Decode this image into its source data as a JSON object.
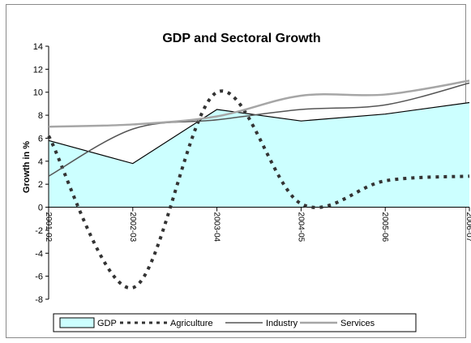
{
  "chart_data": {
    "type": "line",
    "title": "GDP and Sectoral Growth",
    "ylabel": "Growth in %",
    "xlabel": "",
    "ylim": [
      -8,
      14
    ],
    "yticks": [
      -8,
      -6,
      -4,
      -2,
      0,
      2,
      4,
      6,
      8,
      10,
      12,
      14
    ],
    "categories": [
      "2001-02",
      "2002-03",
      "2003-04",
      "2004-05",
      "2005-06",
      "2006-07"
    ],
    "legend_position": "bottom",
    "series": [
      {
        "name": "GDP",
        "style": "area",
        "color": "#ccffff",
        "values": [
          5.8,
          3.8,
          8.5,
          7.5,
          8.1,
          9.1
        ]
      },
      {
        "name": "Agriculture",
        "style": "dotted",
        "color": "#333333",
        "values": [
          6.2,
          -7.0,
          10.0,
          0.3,
          2.3,
          2.7
        ]
      },
      {
        "name": "Industry",
        "style": "solid",
        "color": "#555555",
        "values": [
          2.7,
          6.8,
          7.6,
          8.5,
          8.9,
          10.8
        ]
      },
      {
        "name": "Services",
        "style": "solid",
        "color": "#a6a6a6",
        "values": [
          7.0,
          7.2,
          7.9,
          9.7,
          9.8,
          11.0
        ]
      }
    ]
  }
}
